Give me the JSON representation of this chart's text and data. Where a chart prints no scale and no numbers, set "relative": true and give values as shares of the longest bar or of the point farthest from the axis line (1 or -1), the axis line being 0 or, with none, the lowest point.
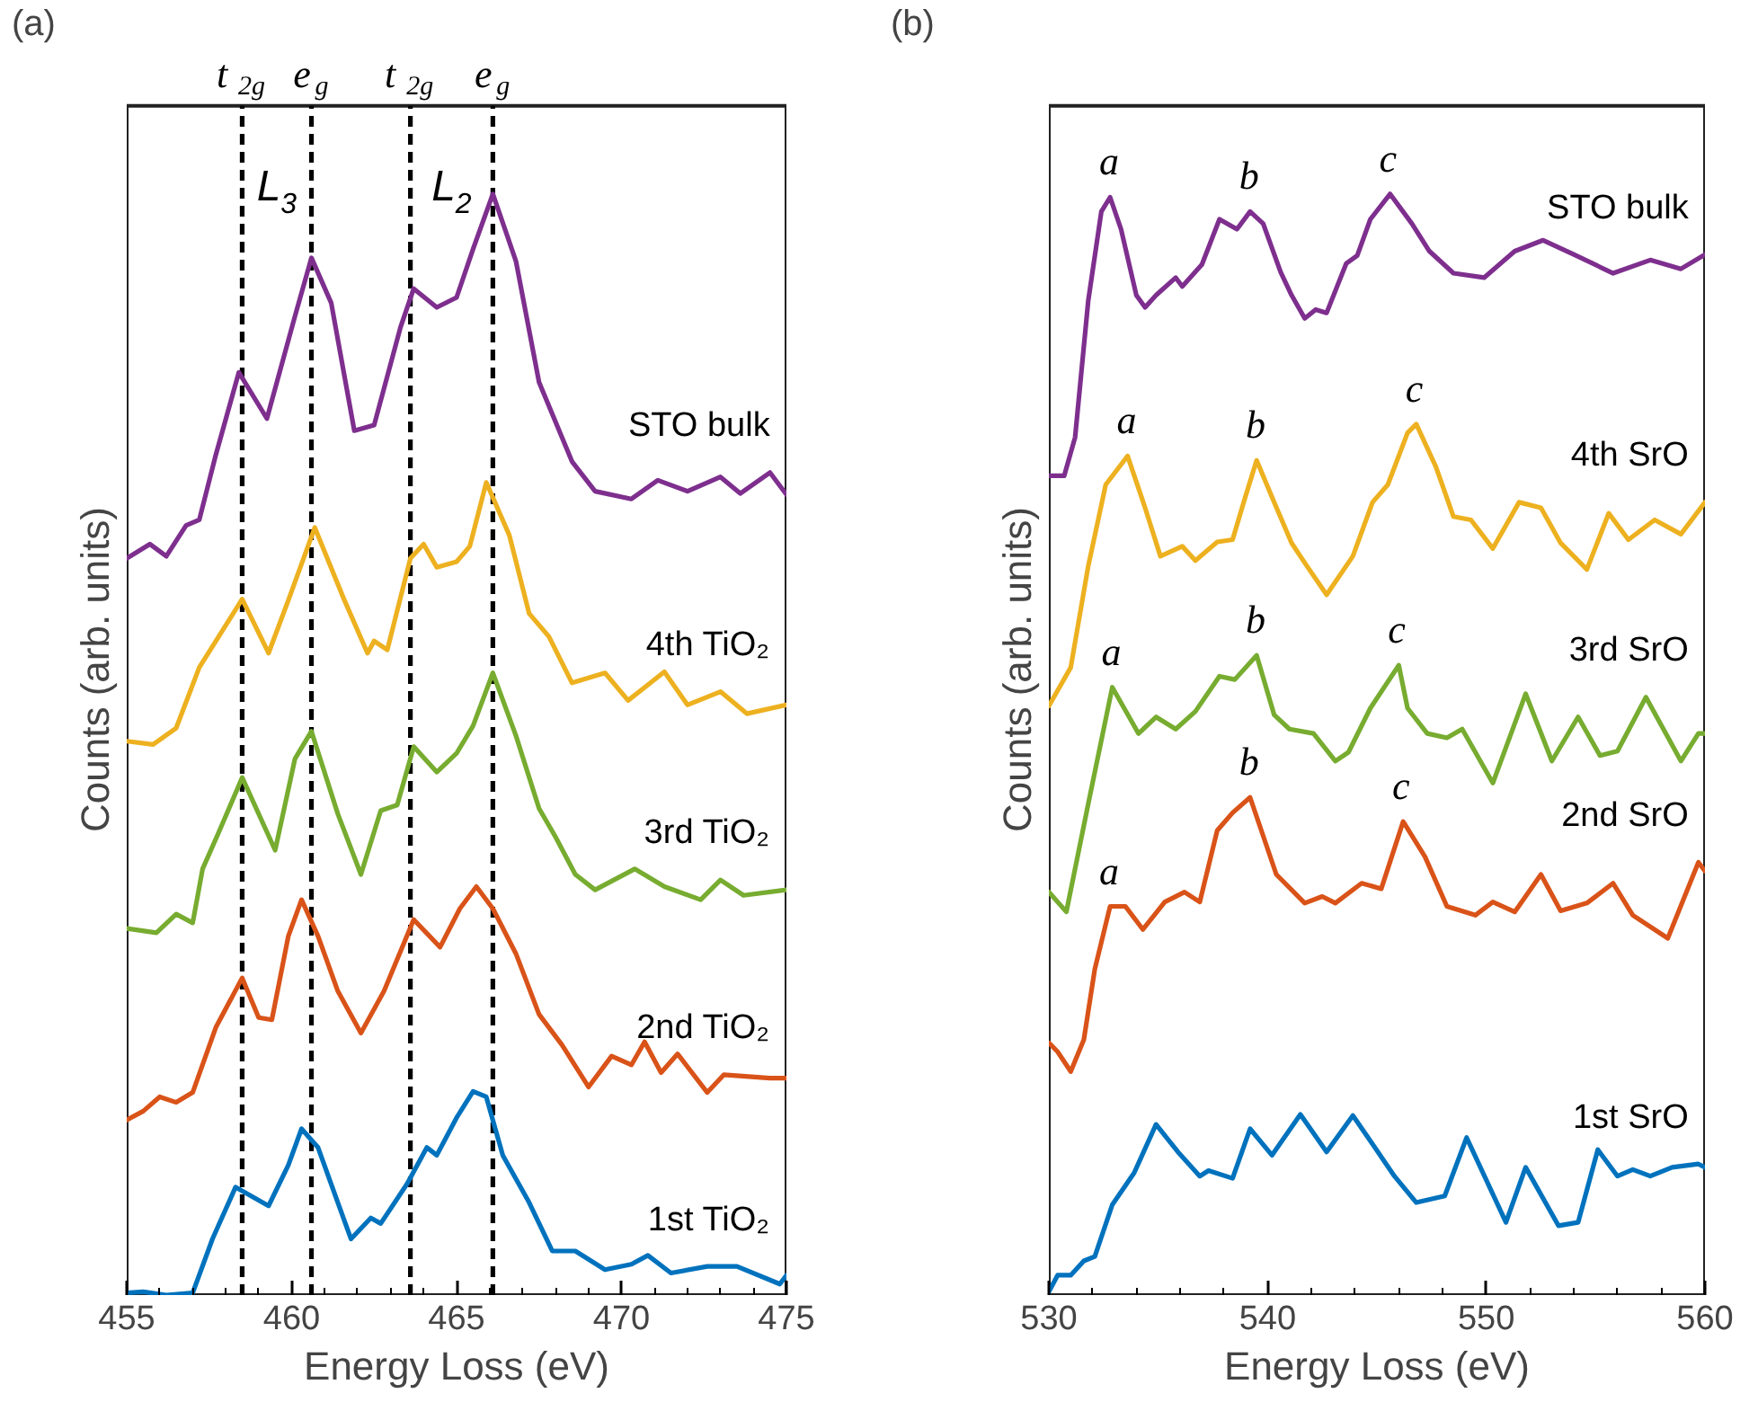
{
  "chart_data": [
    {
      "type": "line",
      "title": "(a)",
      "xlabel": "Energy Loss (eV)",
      "ylabel": "Counts (arb. units)",
      "relative": true,
      "tick_labels": "x",
      "xlim": [
        455,
        475
      ],
      "xticks": [
        455,
        460,
        465,
        470,
        475
      ],
      "series": [
        {
          "name": "STO bulk",
          "color": "#7e2f8e",
          "x": [
            455,
            455.7,
            456.2,
            456.8,
            457.2,
            457.7,
            458.4,
            459.25,
            460.1,
            460.6,
            461.2,
            461.9,
            462.5,
            463.3,
            463.7,
            464.4,
            465.0,
            465.5,
            466.1,
            466.8,
            467.5,
            468.5,
            469.2,
            470.3,
            471.1,
            472.0,
            473.0,
            473.6,
            474.5,
            475
          ],
          "values": [
            0.669,
            0.682,
            0.671,
            0.699,
            0.704,
            0.763,
            0.838,
            0.796,
            0.889,
            0.942,
            0.901,
            0.785,
            0.79,
            0.879,
            0.914,
            0.897,
            0.906,
            0.95,
            1.0,
            0.939,
            0.829,
            0.757,
            0.73,
            0.723,
            0.74,
            0.73,
            0.743,
            0.728,
            0.747,
            0.727
          ]
        },
        {
          "name": "4th TiO₂",
          "color": "#edb120",
          "x": [
            455,
            455.8,
            456.5,
            457.2,
            458.5,
            459.3,
            459.9,
            460.7,
            461.6,
            462.3,
            462.5,
            462.9,
            463.6,
            464.0,
            464.4,
            465.0,
            465.4,
            465.9,
            466.6,
            467.2,
            467.8,
            468.5,
            469.5,
            470.2,
            471.3,
            472.0,
            473.0,
            473.8,
            475
          ],
          "values": [
            0.503,
            0.5,
            0.515,
            0.57,
            0.632,
            0.583,
            0.631,
            0.697,
            0.631,
            0.583,
            0.594,
            0.586,
            0.669,
            0.682,
            0.661,
            0.666,
            0.68,
            0.738,
            0.69,
            0.619,
            0.598,
            0.556,
            0.565,
            0.54,
            0.566,
            0.536,
            0.548,
            0.528,
            0.536
          ]
        },
        {
          "name": "3rd TiO₂",
          "color": "#77ac30",
          "x": [
            455,
            455.9,
            456.5,
            457.0,
            457.3,
            457.8,
            458.5,
            459.5,
            460.1,
            460.6,
            461.4,
            462.1,
            462.7,
            463.2,
            463.7,
            464.4,
            465.0,
            465.5,
            466.1,
            466.8,
            467.5,
            468.0,
            468.6,
            469.2,
            470.4,
            471.3,
            472.4,
            473.0,
            473.7,
            475
          ],
          "values": [
            0.333,
            0.329,
            0.346,
            0.338,
            0.387,
            0.421,
            0.47,
            0.404,
            0.487,
            0.512,
            0.437,
            0.382,
            0.44,
            0.445,
            0.498,
            0.475,
            0.492,
            0.517,
            0.565,
            0.508,
            0.442,
            0.416,
            0.382,
            0.368,
            0.387,
            0.371,
            0.359,
            0.377,
            0.363,
            0.368
          ]
        },
        {
          "name": "2nd TiO₂",
          "color": "#d95319",
          "x": [
            455,
            455.5,
            456.0,
            456.5,
            457.0,
            457.7,
            458.5,
            459.0,
            459.4,
            459.9,
            460.3,
            460.8,
            461.4,
            462.1,
            462.8,
            463.7,
            464.5,
            465.1,
            465.6,
            466.1,
            466.8,
            467.5,
            468.2,
            469.0,
            469.7,
            470.3,
            470.7,
            471.2,
            471.7,
            472.6,
            473.1,
            474.5,
            475
          ],
          "values": [
            0.159,
            0.167,
            0.18,
            0.175,
            0.184,
            0.243,
            0.288,
            0.252,
            0.25,
            0.326,
            0.359,
            0.326,
            0.276,
            0.238,
            0.276,
            0.341,
            0.316,
            0.351,
            0.371,
            0.351,
            0.31,
            0.255,
            0.227,
            0.189,
            0.217,
            0.209,
            0.23,
            0.202,
            0.219,
            0.184,
            0.2,
            0.197,
            0.197
          ]
        },
        {
          "name": "1st TiO₂",
          "color": "#0072bd",
          "x": [
            455,
            455.5,
            456.2,
            457.0,
            457.6,
            458.3,
            459.3,
            459.9,
            460.3,
            460.8,
            461.4,
            461.8,
            462.4,
            462.7,
            463.5,
            464.1,
            464.4,
            465.0,
            465.5,
            465.9,
            466.4,
            467.2,
            467.9,
            468.6,
            469.5,
            470.3,
            470.8,
            471.5,
            472.6,
            473.5,
            474.8,
            475
          ],
          "values": [
            0.002,
            0.003,
            0.0,
            0.002,
            0.051,
            0.098,
            0.081,
            0.118,
            0.151,
            0.134,
            0.084,
            0.051,
            0.07,
            0.065,
            0.101,
            0.134,
            0.127,
            0.161,
            0.185,
            0.18,
            0.127,
            0.084,
            0.04,
            0.04,
            0.023,
            0.028,
            0.036,
            0.02,
            0.026,
            0.026,
            0.01,
            0.018
          ]
        }
      ],
      "ref_lines": [
        {
          "axis": "x",
          "value": 458.5,
          "label": "t$_{2g}$",
          "color": "#000000",
          "line_style": "dashed"
        },
        {
          "axis": "x",
          "value": 460.6,
          "label": "e$_{g}$",
          "color": "#000000",
          "line_style": "dashed"
        },
        {
          "axis": "x",
          "value": 463.6,
          "label": "t$_{2g}$",
          "color": "#000000",
          "line_style": "dashed"
        },
        {
          "axis": "x",
          "value": 466.1,
          "label": "e$_{g}$",
          "color": "#000000",
          "line_style": "dashed"
        }
      ],
      "annotations": [
        "L$_{3}$",
        "L$_{2}$"
      ]
    },
    {
      "type": "line",
      "title": "(b)",
      "xlabel": "Energy Loss (eV)",
      "ylabel": "Counts (arb. units)",
      "relative": true,
      "tick_labels": "x",
      "xlim": [
        530,
        560
      ],
      "xticks": [
        530,
        540,
        550,
        560
      ],
      "series": [
        {
          "name": "STO bulk",
          "color": "#7e2f8e",
          "x": [
            530,
            530.7,
            531.2,
            531.8,
            532.4,
            532.8,
            533.3,
            534.0,
            534.4,
            534.9,
            535.8,
            536.1,
            537.0,
            537.8,
            538.6,
            539.2,
            539.8,
            540.6,
            541.1,
            541.7,
            542.2,
            542.7,
            543.6,
            544.1,
            544.7,
            545.6,
            546.6,
            547.4,
            548.5,
            549.9,
            551.3,
            552.6,
            554.0,
            555.8,
            557.5,
            558.9,
            560
          ],
          "values": [
            0.744,
            0.744,
            0.779,
            0.903,
            0.984,
            0.997,
            0.968,
            0.908,
            0.897,
            0.908,
            0.924,
            0.916,
            0.936,
            0.977,
            0.968,
            0.984,
            0.973,
            0.929,
            0.908,
            0.887,
            0.895,
            0.892,
            0.937,
            0.944,
            0.977,
            1.0,
            0.973,
            0.948,
            0.928,
            0.924,
            0.948,
            0.958,
            0.945,
            0.928,
            0.94,
            0.932,
            0.945
          ]
        },
        {
          "name": "4th SrO",
          "color": "#edb120",
          "x": [
            530,
            531.0,
            531.8,
            532.6,
            533.6,
            534.4,
            535.1,
            536.1,
            536.7,
            537.7,
            538.4,
            539.0,
            539.5,
            540.3,
            541.1,
            541.8,
            542.7,
            543.9,
            544.8,
            545.5,
            546.4,
            546.8,
            547.7,
            548.5,
            549.3,
            550.3,
            551.5,
            552.5,
            553.4,
            554.6,
            555.6,
            556.5,
            557.7,
            558.9,
            560
          ],
          "values": [
            0.535,
            0.57,
            0.662,
            0.736,
            0.762,
            0.715,
            0.671,
            0.68,
            0.667,
            0.684,
            0.686,
            0.726,
            0.758,
            0.72,
            0.683,
            0.662,
            0.636,
            0.671,
            0.72,
            0.736,
            0.783,
            0.791,
            0.752,
            0.707,
            0.704,
            0.678,
            0.72,
            0.715,
            0.683,
            0.659,
            0.71,
            0.686,
            0.704,
            0.691,
            0.72
          ]
        },
        {
          "name": "3rd SrO",
          "color": "#77ac30",
          "x": [
            530,
            530.8,
            531.8,
            532.9,
            534.1,
            534.9,
            535.8,
            536.7,
            537.8,
            538.5,
            539.5,
            540.3,
            541.0,
            542.1,
            543.1,
            543.7,
            544.7,
            546.0,
            546.4,
            547.3,
            548.2,
            548.9,
            550.3,
            551.8,
            553.0,
            554.2,
            555.2,
            556.0,
            557.3,
            558.9,
            559.7,
            560
          ],
          "values": [
            0.366,
            0.348,
            0.446,
            0.552,
            0.51,
            0.525,
            0.514,
            0.53,
            0.562,
            0.559,
            0.581,
            0.527,
            0.514,
            0.51,
            0.485,
            0.493,
            0.533,
            0.572,
            0.533,
            0.51,
            0.506,
            0.514,
            0.465,
            0.546,
            0.485,
            0.525,
            0.49,
            0.494,
            0.543,
            0.485,
            0.51,
            0.51
          ]
        },
        {
          "name": "2nd SrO",
          "color": "#d95319",
          "x": [
            530,
            530.4,
            531.0,
            531.6,
            532.1,
            532.8,
            533.5,
            534.3,
            535.3,
            536.2,
            536.9,
            537.7,
            538.4,
            539.2,
            540.4,
            541.7,
            542.5,
            543.1,
            544.3,
            545.2,
            546.2,
            547.2,
            548.2,
            549.5,
            550.3,
            551.3,
            552.5,
            553.4,
            554.6,
            555.8,
            556.7,
            558.3,
            559.7,
            560
          ],
          "values": [
            0.229,
            0.221,
            0.203,
            0.232,
            0.296,
            0.353,
            0.353,
            0.332,
            0.357,
            0.366,
            0.357,
            0.422,
            0.438,
            0.452,
            0.382,
            0.356,
            0.362,
            0.356,
            0.374,
            0.369,
            0.43,
            0.398,
            0.353,
            0.345,
            0.357,
            0.348,
            0.382,
            0.349,
            0.356,
            0.374,
            0.345,
            0.324,
            0.393,
            0.385
          ]
        },
        {
          "name": "1st SrO",
          "color": "#0072bd",
          "x": [
            530,
            530.4,
            531.0,
            531.6,
            532.1,
            532.9,
            533.9,
            534.9,
            535.9,
            536.9,
            537.3,
            538.4,
            539.2,
            540.2,
            541.5,
            542.7,
            543.9,
            544.7,
            545.8,
            546.8,
            548.1,
            549.1,
            550.9,
            551.8,
            553.3,
            554.2,
            555.1,
            556.0,
            556.7,
            557.5,
            558.5,
            559.7,
            560
          ],
          "values": [
            0.003,
            0.018,
            0.018,
            0.031,
            0.035,
            0.082,
            0.111,
            0.155,
            0.13,
            0.108,
            0.113,
            0.106,
            0.151,
            0.127,
            0.164,
            0.13,
            0.163,
            0.14,
            0.108,
            0.084,
            0.09,
            0.143,
            0.066,
            0.116,
            0.063,
            0.066,
            0.132,
            0.108,
            0.114,
            0.108,
            0.116,
            0.119,
            0.116
          ]
        }
      ],
      "annotations": [
        {
          "text": "a",
          "x": 532.8,
          "y": 0.997
        },
        {
          "text": "b",
          "x": 539.2,
          "y": 0.984
        },
        {
          "text": "c",
          "x": 545.6,
          "y": 1.0
        },
        {
          "text": "a",
          "x": 533.6,
          "y": 0.762
        },
        {
          "text": "b",
          "x": 539.5,
          "y": 0.758
        },
        {
          "text": "c",
          "x": 546.8,
          "y": 0.791
        },
        {
          "text": "a",
          "x": 532.9,
          "y": 0.552
        },
        {
          "text": "b",
          "x": 539.5,
          "y": 0.581
        },
        {
          "text": "c",
          "x": 546.0,
          "y": 0.572
        },
        {
          "text": "a",
          "x": 532.8,
          "y": 0.353
        },
        {
          "text": "b",
          "x": 539.2,
          "y": 0.452
        },
        {
          "text": "c",
          "x": 546.2,
          "y": 0.43
        }
      ]
    }
  ]
}
